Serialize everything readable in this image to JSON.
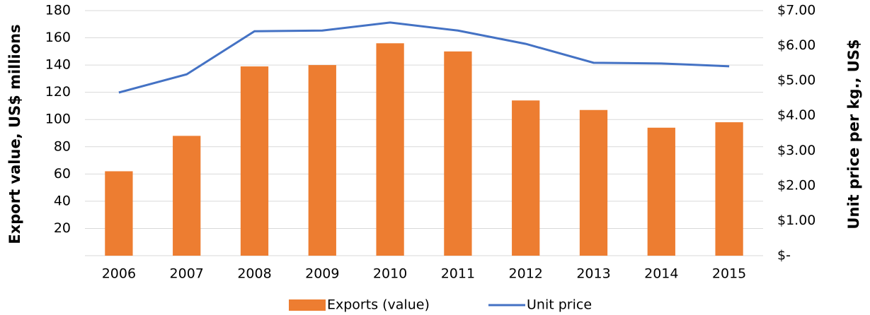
{
  "chart_data": {
    "type": "bar_line",
    "categories": [
      "2006",
      "2007",
      "2008",
      "2009",
      "2010",
      "2011",
      "2012",
      "2013",
      "2014",
      "2015"
    ],
    "series": [
      {
        "name": "Exports (value)",
        "type": "bar",
        "color": "#ed7d31",
        "values": [
          62,
          88,
          139,
          140,
          156,
          150,
          114,
          107,
          94,
          98
        ]
      },
      {
        "name": "Unit price",
        "type": "line",
        "color": "#4472c4",
        "axis": "y2",
        "values": [
          4.66,
          5.18,
          6.41,
          6.43,
          6.66,
          6.43,
          6.05,
          5.51,
          5.49,
          5.41
        ]
      }
    ],
    "ylabel": "Export value, US$ millions",
    "y2label": "Unit price per kg., US$",
    "ylim": [
      0,
      180
    ],
    "yticks": [
      20,
      40,
      60,
      80,
      100,
      120,
      140,
      160,
      180
    ],
    "y2lim": [
      0,
      7
    ],
    "y2ticks": [
      {
        "value": 0,
        "label": "$-"
      },
      {
        "value": 1,
        "label": "$1.00"
      },
      {
        "value": 2,
        "label": "$2.00"
      },
      {
        "value": 3,
        "label": "$3.00"
      },
      {
        "value": 4,
        "label": "$4.00"
      },
      {
        "value": 5,
        "label": "$5.00"
      },
      {
        "value": 6,
        "label": "$6.00"
      },
      {
        "value": 7,
        "label": "$7.00"
      }
    ],
    "grid": true,
    "legend": "bottom"
  }
}
